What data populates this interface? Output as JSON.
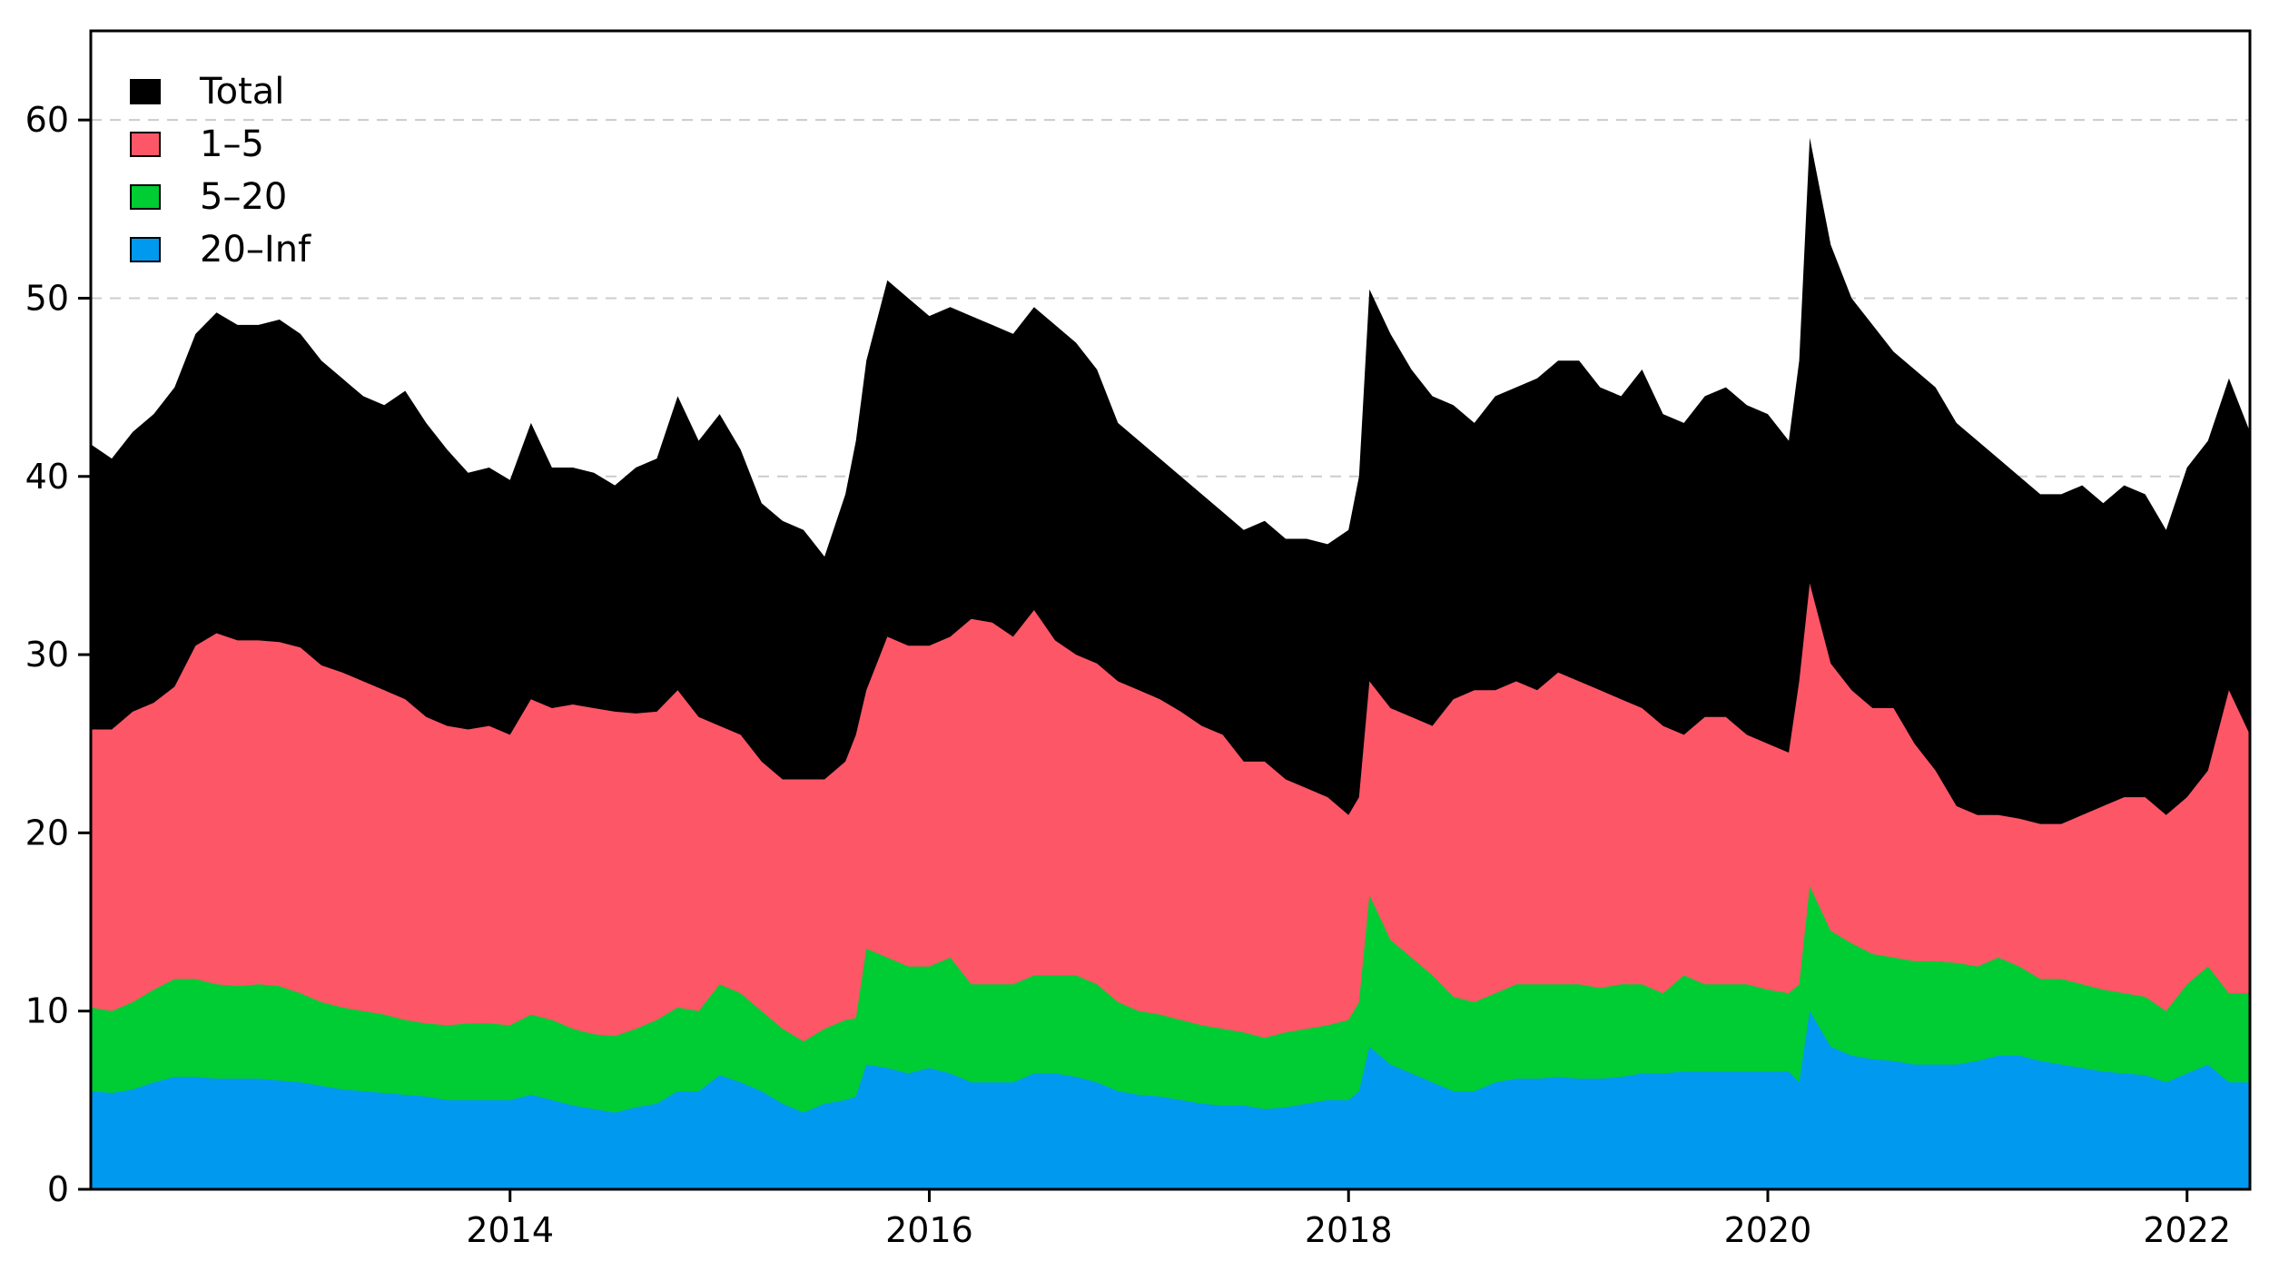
{
  "chart_data": {
    "type": "area",
    "stacking": "layered",
    "title": "",
    "xlabel": "",
    "ylabel": "",
    "xlim": [
      2012.0,
      2022.3
    ],
    "ylim": [
      0,
      65
    ],
    "x_ticks": [
      2014,
      2016,
      2018,
      2020,
      2022
    ],
    "y_ticks": [
      0,
      10,
      20,
      30,
      40,
      50,
      60
    ],
    "grid": {
      "horizontal": true,
      "style": "dashed",
      "lines_at": [
        40,
        50,
        60
      ]
    },
    "legend": {
      "placement": "top-left"
    },
    "x": [
      2012.0,
      2012.1,
      2012.2,
      2012.3,
      2012.4,
      2012.5,
      2012.6,
      2012.7,
      2012.8,
      2012.9,
      2013.0,
      2013.1,
      2013.2,
      2013.3,
      2013.4,
      2013.5,
      2013.6,
      2013.7,
      2013.8,
      2013.9,
      2014.0,
      2014.1,
      2014.2,
      2014.3,
      2014.4,
      2014.5,
      2014.6,
      2014.7,
      2014.8,
      2014.9,
      2015.0,
      2015.1,
      2015.2,
      2015.3,
      2015.4,
      2015.5,
      2015.6,
      2015.65,
      2015.7,
      2015.8,
      2015.9,
      2016.0,
      2016.1,
      2016.2,
      2016.3,
      2016.4,
      2016.5,
      2016.6,
      2016.7,
      2016.8,
      2016.9,
      2017.0,
      2017.1,
      2017.2,
      2017.3,
      2017.4,
      2017.5,
      2017.6,
      2017.7,
      2017.8,
      2017.9,
      2018.0,
      2018.05,
      2018.1,
      2018.2,
      2018.3,
      2018.4,
      2018.5,
      2018.6,
      2018.7,
      2018.8,
      2018.9,
      2019.0,
      2019.1,
      2019.2,
      2019.3,
      2019.4,
      2019.5,
      2019.6,
      2019.7,
      2019.8,
      2019.9,
      2020.0,
      2020.1,
      2020.15,
      2020.2,
      2020.3,
      2020.4,
      2020.5,
      2020.6,
      2020.7,
      2020.8,
      2020.9,
      2021.0,
      2021.1,
      2021.2,
      2021.3,
      2021.4,
      2021.5,
      2021.6,
      2021.7,
      2021.8,
      2021.9,
      2022.0,
      2022.1,
      2022.2,
      2022.3
    ],
    "series": [
      {
        "name": "Total",
        "color": "#000000",
        "values": [
          41.8,
          41.0,
          42.5,
          43.5,
          45.0,
          48.0,
          49.2,
          48.5,
          48.5,
          48.8,
          48.0,
          46.5,
          45.5,
          44.5,
          44.0,
          44.8,
          43.0,
          41.5,
          40.2,
          40.5,
          39.8,
          43.0,
          40.5,
          40.5,
          40.2,
          39.5,
          40.5,
          41.0,
          44.5,
          42.0,
          43.5,
          41.5,
          38.5,
          37.5,
          37.0,
          35.5,
          39.0,
          42.0,
          46.5,
          51.0,
          50.0,
          49.0,
          49.5,
          49.0,
          48.5,
          48.0,
          49.5,
          48.5,
          47.5,
          46.0,
          43.0,
          42.0,
          41.0,
          40.0,
          39.0,
          38.0,
          37.0,
          37.5,
          36.5,
          36.5,
          36.2,
          37.0,
          40.0,
          50.5,
          48.0,
          46.0,
          44.5,
          44.0,
          43.0,
          44.5,
          45.0,
          45.5,
          46.5,
          46.5,
          45.0,
          44.5,
          46.0,
          43.5,
          43.0,
          44.5,
          45.0,
          44.0,
          43.5,
          42.0,
          46.5,
          59.0,
          53.0,
          50.0,
          48.5,
          47.0,
          46.0,
          45.0,
          43.0,
          42.0,
          41.0,
          40.0,
          39.0,
          39.0,
          39.5,
          38.5,
          39.5,
          39.0,
          37.0,
          40.5,
          42.0,
          45.5,
          42.5
        ]
      },
      {
        "name": "1–5",
        "color": "#fd5667",
        "values": [
          25.8,
          25.8,
          26.8,
          27.3,
          28.2,
          30.5,
          31.2,
          30.8,
          30.8,
          30.7,
          30.4,
          29.4,
          29.0,
          28.5,
          28.0,
          27.5,
          26.5,
          26.0,
          25.8,
          26.0,
          25.5,
          27.5,
          27.0,
          27.2,
          27.0,
          26.8,
          26.7,
          26.8,
          28.0,
          26.5,
          26.0,
          25.5,
          24.0,
          23.0,
          23.0,
          23.0,
          24.0,
          25.5,
          28.0,
          31.0,
          30.5,
          30.5,
          31.0,
          32.0,
          31.8,
          31.0,
          32.5,
          30.8,
          30.0,
          29.5,
          28.5,
          28.0,
          27.5,
          26.8,
          26.0,
          25.5,
          24.0,
          24.0,
          23.0,
          22.5,
          22.0,
          21.0,
          22.0,
          28.5,
          27.0,
          26.5,
          26.0,
          27.5,
          28.0,
          28.0,
          28.5,
          28.0,
          29.0,
          28.5,
          28.0,
          27.5,
          27.0,
          26.0,
          25.5,
          26.5,
          26.5,
          25.5,
          25.0,
          24.5,
          28.5,
          34.0,
          29.5,
          28.0,
          27.0,
          27.0,
          25.0,
          23.5,
          21.5,
          21.0,
          21.0,
          20.8,
          20.5,
          20.5,
          21.0,
          21.5,
          22.0,
          22.0,
          21.0,
          22.0,
          23.5,
          28.0,
          25.5
        ]
      },
      {
        "name": "5–20",
        "color": "#00cc33",
        "values": [
          10.2,
          10.0,
          10.5,
          11.2,
          11.8,
          11.8,
          11.5,
          11.4,
          11.5,
          11.4,
          11.0,
          10.5,
          10.2,
          10.0,
          9.8,
          9.5,
          9.3,
          9.2,
          9.3,
          9.3,
          9.2,
          9.8,
          9.5,
          9.0,
          8.7,
          8.6,
          9.0,
          9.5,
          10.2,
          10.0,
          11.5,
          11.0,
          10.0,
          9.0,
          8.3,
          9.0,
          9.5,
          9.6,
          13.5,
          13.0,
          12.5,
          12.5,
          13.0,
          11.5,
          11.5,
          11.5,
          12.0,
          12.0,
          12.0,
          11.5,
          10.5,
          10.0,
          9.8,
          9.5,
          9.2,
          9.0,
          8.8,
          8.5,
          8.8,
          9.0,
          9.2,
          9.5,
          10.5,
          16.5,
          14.0,
          13.0,
          12.0,
          10.8,
          10.5,
          11.0,
          11.5,
          11.5,
          11.5,
          11.5,
          11.3,
          11.5,
          11.5,
          11.0,
          12.0,
          11.5,
          11.5,
          11.5,
          11.2,
          11.0,
          11.5,
          17.0,
          14.5,
          13.8,
          13.2,
          13.0,
          12.8,
          12.8,
          12.7,
          12.5,
          13.0,
          12.5,
          11.8,
          11.8,
          11.5,
          11.2,
          11.0,
          10.8,
          10.0,
          11.5,
          12.5,
          11.0,
          11.0
        ]
      },
      {
        "name": "20–Inf",
        "color": "#0099f0",
        "values": [
          5.5,
          5.4,
          5.6,
          6.0,
          6.3,
          6.3,
          6.2,
          6.2,
          6.2,
          6.1,
          6.0,
          5.8,
          5.6,
          5.5,
          5.4,
          5.3,
          5.2,
          5.0,
          5.0,
          5.0,
          5.0,
          5.3,
          5.0,
          4.7,
          4.5,
          4.3,
          4.6,
          4.8,
          5.5,
          5.5,
          6.4,
          6.0,
          5.5,
          4.8,
          4.3,
          4.8,
          5.0,
          5.2,
          7.0,
          6.8,
          6.5,
          6.8,
          6.5,
          6.0,
          6.0,
          6.0,
          6.5,
          6.5,
          6.3,
          6.0,
          5.5,
          5.3,
          5.2,
          5.0,
          4.8,
          4.7,
          4.7,
          4.5,
          4.6,
          4.8,
          5.0,
          5.0,
          5.5,
          8.0,
          7.0,
          6.5,
          6.0,
          5.5,
          5.5,
          6.0,
          6.2,
          6.2,
          6.3,
          6.2,
          6.2,
          6.3,
          6.5,
          6.5,
          6.6,
          6.6,
          6.6,
          6.6,
          6.6,
          6.6,
          6.0,
          10.0,
          8.0,
          7.5,
          7.3,
          7.2,
          7.0,
          7.0,
          7.0,
          7.2,
          7.5,
          7.5,
          7.2,
          7.0,
          6.8,
          6.6,
          6.5,
          6.4,
          6.0,
          6.5,
          7.0,
          6.0,
          6.0
        ]
      }
    ]
  }
}
